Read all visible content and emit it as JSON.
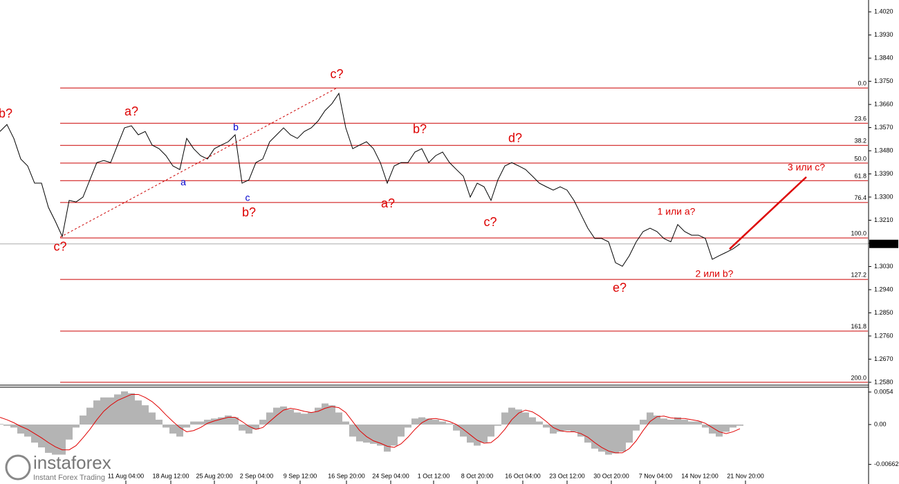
{
  "chart_data": [
    {
      "type": "line",
      "x": [
        0,
        1,
        2,
        3,
        4,
        5,
        6,
        7,
        8,
        9,
        10,
        11,
        12,
        13,
        14,
        15,
        16,
        17,
        18,
        19,
        20,
        21,
        22,
        23,
        24,
        25,
        26,
        27,
        28,
        29,
        30,
        31,
        32,
        33,
        34,
        35,
        36,
        37,
        38,
        39,
        40,
        41,
        42,
        43,
        44,
        45,
        46,
        47,
        48,
        49,
        50,
        51,
        52,
        53,
        54,
        55,
        56,
        57,
        58,
        59,
        60,
        61,
        62,
        63,
        64,
        65,
        66,
        67,
        68,
        69,
        70,
        71,
        72,
        73,
        74,
        75,
        76,
        77,
        78,
        79,
        80,
        81,
        82,
        83,
        84,
        85,
        86,
        87,
        88,
        89,
        90,
        91,
        92,
        93,
        94,
        95,
        96,
        97,
        98,
        99,
        100,
        101,
        102,
        103,
        104,
        105,
        106,
        107
      ],
      "values": [
        1.3555,
        1.3582,
        1.3528,
        1.3448,
        1.3421,
        1.3354,
        1.3354,
        1.326,
        1.3206,
        1.3147,
        1.3287,
        1.3281,
        1.33,
        1.3367,
        1.3434,
        1.3442,
        1.3434,
        1.3502,
        1.3569,
        1.3577,
        1.3542,
        1.3555,
        1.3502,
        1.3488,
        1.3461,
        1.3421,
        1.3407,
        1.3528,
        1.3488,
        1.3461,
        1.3448,
        1.3488,
        1.3502,
        1.3515,
        1.3542,
        1.3354,
        1.3367,
        1.3434,
        1.3448,
        1.3515,
        1.3542,
        1.3569,
        1.3542,
        1.3528,
        1.3555,
        1.3569,
        1.3596,
        1.3636,
        1.3663,
        1.3703,
        1.3569,
        1.3488,
        1.3502,
        1.3515,
        1.3488,
        1.3434,
        1.3354,
        1.3421,
        1.3434,
        1.3434,
        1.3475,
        1.3488,
        1.3434,
        1.3461,
        1.3475,
        1.3434,
        1.3407,
        1.3381,
        1.33,
        1.3354,
        1.334,
        1.3287,
        1.3367,
        1.3421,
        1.3434,
        1.3421,
        1.3407,
        1.3381,
        1.3354,
        1.334,
        1.3327,
        1.334,
        1.3327,
        1.3287,
        1.3233,
        1.3179,
        1.3139,
        1.3139,
        1.3126,
        1.3045,
        1.3031,
        1.3072,
        1.3126,
        1.3166,
        1.3179,
        1.3166,
        1.3139,
        1.3126,
        1.3193,
        1.3166,
        1.3152,
        1.3152,
        1.3139,
        1.3058,
        1.3072,
        1.3085,
        1.3099,
        1.3118
      ],
      "color": "#000000",
      "xlim": [
        0,
        125.5
      ],
      "xticks": [
        {
          "value": 18.2,
          "label": "11 Aug 04:00"
        },
        {
          "value": 24.7,
          "label": "18 Aug 12:00"
        },
        {
          "value": 31.0,
          "label": "25 Aug 20:00"
        },
        {
          "value": 37.1,
          "label": "2 Sep 04:00"
        },
        {
          "value": 43.4,
          "label": "9 Sep 12:00"
        },
        {
          "value": 50.1,
          "label": "16 Sep 20:00"
        },
        {
          "value": 56.5,
          "label": "24 Sep 04:00"
        },
        {
          "value": 62.7,
          "label": "1 Oct 12:00"
        },
        {
          "value": 69.0,
          "label": "8 Oct 20:00"
        },
        {
          "value": 75.6,
          "label": "16 Oct 04:00"
        },
        {
          "value": 82.0,
          "label": "23 Oct 12:00"
        },
        {
          "value": 88.4,
          "label": "30 Oct 20:00"
        },
        {
          "value": 94.8,
          "label": "7 Nov 04:00"
        },
        {
          "value": 101.2,
          "label": "14 Nov 12:00"
        },
        {
          "value": 107.8,
          "label": "21 Nov 20:00"
        }
      ],
      "ylim": [
        1.2569,
        1.4066
      ],
      "yticks": [
        {
          "value": 1.402,
          "label": "1.4020"
        },
        {
          "value": 1.393,
          "label": "1.3930"
        },
        {
          "value": 1.384,
          "label": "1.3840"
        },
        {
          "value": 1.375,
          "label": "1.3750"
        },
        {
          "value": 1.366,
          "label": "1.3660"
        },
        {
          "value": 1.357,
          "label": "1.3570"
        },
        {
          "value": 1.348,
          "label": "1.3480"
        },
        {
          "value": 1.339,
          "label": "1.3390"
        },
        {
          "value": 1.33,
          "label": "1.3300"
        },
        {
          "value": 1.321,
          "label": "1.3210"
        },
        {
          "value": 1.312,
          "label": "1.3120"
        },
        {
          "value": 1.303,
          "label": "1.3030"
        },
        {
          "value": 1.294,
          "label": "1.2940"
        },
        {
          "value": 1.285,
          "label": "1.2850"
        },
        {
          "value": 1.276,
          "label": "1.2760"
        },
        {
          "value": 1.267,
          "label": "1.2670"
        },
        {
          "value": 1.258,
          "label": "1.2580"
        }
      ],
      "current_price": 1.3118,
      "fib_start": 8.7,
      "fib_color": "#cc0000",
      "fib_levels": [
        {
          "label": "0.0",
          "price": 1.3724
        },
        {
          "label": "23.6",
          "price": 1.3587
        },
        {
          "label": "38.2",
          "price": 1.3501
        },
        {
          "label": "50.0",
          "price": 1.3432
        },
        {
          "label": "61.8",
          "price": 1.3364
        },
        {
          "label": "76.4",
          "price": 1.3279
        },
        {
          "label": "100.0",
          "price": 1.3141
        },
        {
          "label": "127.2",
          "price": 1.298
        },
        {
          "label": "161.8",
          "price": 1.2779
        },
        {
          "label": "200.0",
          "price": 1.258
        }
      ],
      "trend_line": {
        "x": [
          8.7,
          48.7
        ],
        "y": [
          1.3144,
          1.3724
        ],
        "color": "#cc0000"
      },
      "arrow_line": {
        "x": [
          105.5,
          116.6
        ],
        "y": [
          1.3098,
          1.3378
        ],
        "color": "#dd0000"
      },
      "annotations": [
        {
          "text": "b?",
          "x": 0.8,
          "y": 1.3622,
          "color": "#dd0000"
        },
        {
          "text": "c?",
          "x": 8.7,
          "y": 1.3104,
          "color": "#dd0000"
        },
        {
          "text": "a?",
          "x": 19,
          "y": 1.363,
          "color": "#dd0000"
        },
        {
          "text": "a",
          "x": 26.5,
          "y": 1.3356,
          "color": "#0000cc"
        },
        {
          "text": "b",
          "x": 34.1,
          "y": 1.3569,
          "color": "#0000cc"
        },
        {
          "text": "c",
          "x": 35.8,
          "y": 1.3295,
          "color": "#0000cc"
        },
        {
          "text": "b?",
          "x": 36,
          "y": 1.3238,
          "color": "#dd0000"
        },
        {
          "text": "c?",
          "x": 48.7,
          "y": 1.3775,
          "color": "#dd0000"
        },
        {
          "text": "b?",
          "x": 60.7,
          "y": 1.3561,
          "color": "#dd0000"
        },
        {
          "text": "a?",
          "x": 56.1,
          "y": 1.3273,
          "color": "#dd0000"
        },
        {
          "text": "d?",
          "x": 74.5,
          "y": 1.3526,
          "color": "#dd0000"
        },
        {
          "text": "c?",
          "x": 70.9,
          "y": 1.32,
          "color": "#dd0000"
        },
        {
          "text": "e?",
          "x": 89.6,
          "y": 1.2945,
          "color": "#dd0000"
        },
        {
          "text": "1 или a?",
          "x": 97.8,
          "y": 1.3241,
          "color": "#dd0000"
        },
        {
          "text": "2 или b?",
          "x": 103.3,
          "y": 1.3,
          "color": "#dd0000"
        },
        {
          "text": "3 или c?",
          "x": 116.6,
          "y": 1.3413,
          "color": "#dd0000"
        }
      ]
    },
    {
      "type": "macd",
      "histogram": [
        0.0001,
        -0.0002,
        -0.0005,
        -0.0015,
        -0.002,
        -0.003,
        -0.0038,
        -0.0047,
        -0.005,
        -0.005,
        -0.0025,
        -0.0005,
        0.0015,
        0.0028,
        0.004,
        0.0045,
        0.0045,
        0.005,
        0.0055,
        0.0052,
        0.004,
        0.0032,
        0.002,
        0.0008,
        -0.0005,
        -0.0015,
        -0.002,
        -0.0005,
        0.0005,
        0.0005,
        0.0008,
        0.001,
        0.0012,
        0.0015,
        0.0012,
        -0.001,
        -0.0015,
        -0.0008,
        0.0008,
        0.002,
        0.0028,
        0.003,
        0.0025,
        0.002,
        0.0018,
        0.002,
        0.0028,
        0.0035,
        0.0032,
        0.002,
        0.0005,
        -0.002,
        -0.0028,
        -0.003,
        -0.0032,
        -0.0035,
        -0.0045,
        -0.0035,
        -0.002,
        -0.0005,
        0.001,
        0.0012,
        0.001,
        0.0008,
        0.0005,
        0.0002,
        -0.001,
        -0.002,
        -0.003,
        -0.0035,
        -0.003,
        -0.002,
        -0.0002,
        0.002,
        0.0028,
        0.0025,
        0.002,
        0.0012,
        0.0005,
        -0.0005,
        -0.0015,
        -0.0012,
        -0.001,
        -0.0012,
        -0.002,
        -0.003,
        -0.004,
        -0.0045,
        -0.005,
        -0.0048,
        -0.0045,
        -0.003,
        -0.001,
        0.0008,
        0.002,
        0.0015,
        0.001,
        0.0008,
        0.0012,
        0.0008,
        0.0005,
        0.0005,
        -0.0005,
        -0.0015,
        -0.002,
        -0.0012,
        -0.0005,
        -0.0002
      ],
      "signal": [
        0.0012,
        0.0008,
        0.0003,
        -0.0003,
        -0.0008,
        -0.0015,
        -0.0022,
        -0.003,
        -0.0037,
        -0.0042,
        -0.0042,
        -0.0035,
        -0.0022,
        -0.0008,
        0.0008,
        0.0022,
        0.0032,
        0.004,
        0.0045,
        0.005,
        0.005,
        0.0045,
        0.0038,
        0.0028,
        0.0016,
        0.0005,
        -0.0005,
        -0.0012,
        -0.001,
        -0.0005,
        0.0002,
        0.0006,
        0.0009,
        0.0012,
        0.0012,
        0.0005,
        -0.0003,
        -0.0008,
        -0.0005,
        0.0005,
        0.0015,
        0.0024,
        0.0027,
        0.0025,
        0.0022,
        0.002,
        0.0022,
        0.0027,
        0.003,
        0.0028,
        0.002,
        0.0005,
        -0.001,
        -0.002,
        -0.0027,
        -0.0031,
        -0.0036,
        -0.0038,
        -0.0032,
        -0.0021,
        -0.0008,
        0.0003,
        0.0009,
        0.001,
        0.0008,
        0.0005,
        0,
        -0.0008,
        -0.0017,
        -0.0026,
        -0.0031,
        -0.003,
        -0.0021,
        -0.0008,
        0.0008,
        0.0019,
        0.0024,
        0.0021,
        0.0014,
        0.0005,
        -0.0005,
        -0.001,
        -0.0012,
        -0.0012,
        -0.0015,
        -0.0021,
        -0.003,
        -0.0038,
        -0.0044,
        -0.0047,
        -0.0047,
        -0.004,
        -0.0027,
        -0.001,
        0.0005,
        0.0013,
        0.0014,
        0.0011,
        0.001,
        0.001,
        0.0008,
        0.0006,
        0.0002,
        -0.0005,
        -0.0012,
        -0.0015,
        -0.0012,
        -0.0007
      ],
      "histogram_color": "#b4b4b4",
      "signal_color": "#e00000",
      "ylim": [
        -0.0093,
        0.0062
      ],
      "yticks": [
        0.0054,
        {
          "value": 0,
          "label": "0.00"
        },
        -0.00662
      ]
    }
  ],
  "logo": {
    "name": "instaforex",
    "tagline": "Instant Forex Trading"
  }
}
